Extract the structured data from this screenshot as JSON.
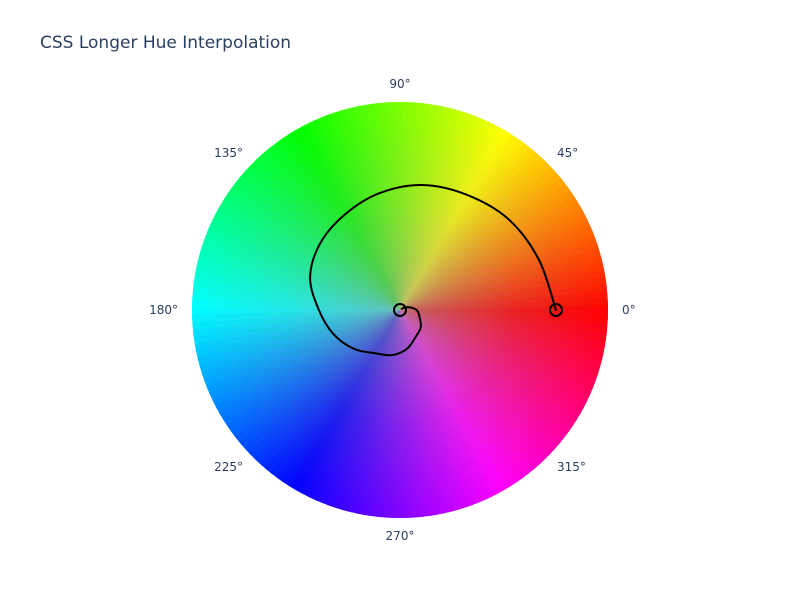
{
  "chart_data": {
    "type": "polar",
    "title": "CSS Longer Hue Interpolation",
    "angular_axis": {
      "unit": "degrees",
      "direction": "counterclockwise",
      "rotation": 0,
      "tick_values": [
        0,
        45,
        90,
        135,
        180,
        225,
        270,
        315
      ],
      "tick_labels": [
        "0°",
        "45°",
        "90°",
        "135°",
        "180°",
        "225°",
        "270°",
        "315°"
      ]
    },
    "radial_axis": {
      "range": [
        0,
        1
      ],
      "visible": false
    },
    "background": {
      "type": "hue-wheel",
      "hue_range": [
        0,
        360
      ],
      "center_desaturated": true
    },
    "grid": false,
    "legend": "none",
    "series": [
      {
        "mode": "lines",
        "color": "#000000",
        "interpolation": "longer hue",
        "points": [
          {
            "theta": 0,
            "r": 0.75
          },
          {
            "theta": 20,
            "r": 0.71
          },
          {
            "theta": 40,
            "r": 0.68
          },
          {
            "theta": 60,
            "r": 0.64
          },
          {
            "theta": 80,
            "r": 0.61
          },
          {
            "theta": 100,
            "r": 0.57
          },
          {
            "theta": 120,
            "r": 0.53
          },
          {
            "theta": 140,
            "r": 0.5
          },
          {
            "theta": 160,
            "r": 0.46
          },
          {
            "theta": 180,
            "r": 0.39
          },
          {
            "theta": 200,
            "r": 0.34
          },
          {
            "theta": 220,
            "r": 0.29
          },
          {
            "theta": 240,
            "r": 0.24
          },
          {
            "theta": 260,
            "r": 0.22
          },
          {
            "theta": 280,
            "r": 0.19
          },
          {
            "theta": 300,
            "r": 0.15
          },
          {
            "theta": 320,
            "r": 0.13
          },
          {
            "theta": 340,
            "r": 0.1
          },
          {
            "theta": 360,
            "r": 0.08
          },
          {
            "theta": 380,
            "r": 0.04
          },
          {
            "theta": 400,
            "r": 0.01
          }
        ]
      }
    ],
    "markers": [
      {
        "name": "start",
        "theta": 0,
        "r": 0.75,
        "symbol": "circle-open",
        "color": "#000000"
      },
      {
        "name": "end",
        "theta": 0,
        "r": 0,
        "symbol": "circle-open",
        "color": "#000000"
      }
    ]
  }
}
